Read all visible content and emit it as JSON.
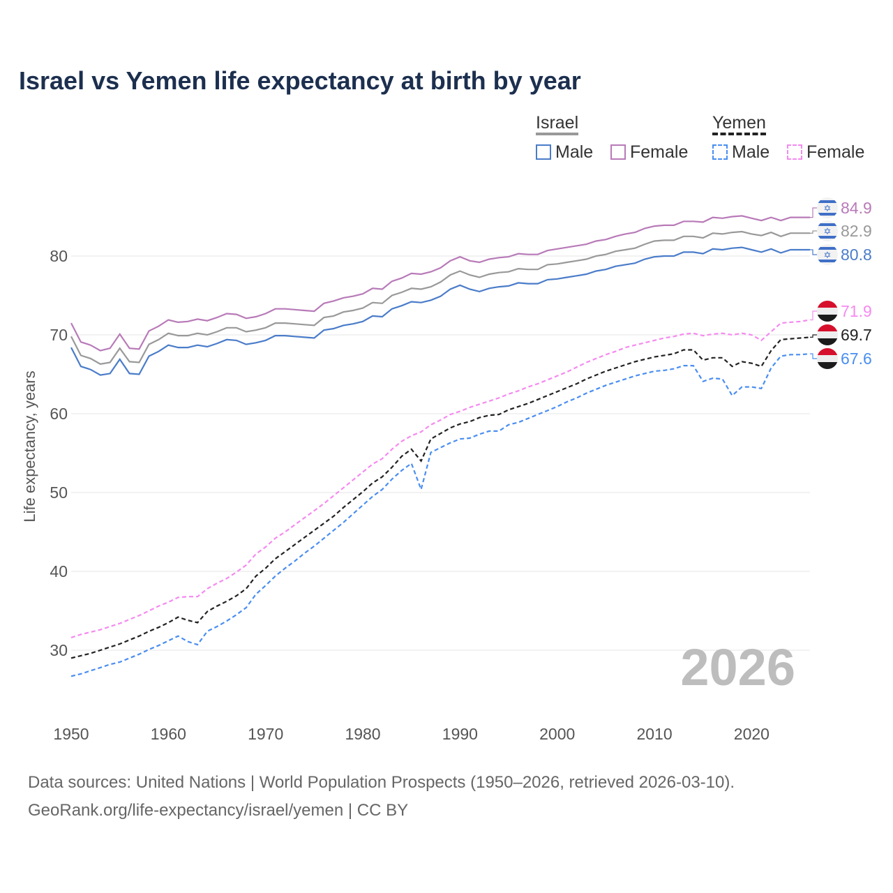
{
  "chart_data": {
    "type": "line",
    "title": "Israel vs Yemen life expectancy at birth by year",
    "xlabel": "",
    "ylabel": "Life expectancy, years",
    "xlim": [
      1950,
      2026
    ],
    "ylim": [
      22,
      87
    ],
    "x_ticks": [
      "1950",
      "1960",
      "1970",
      "1980",
      "1990",
      "2000",
      "2010",
      "2020"
    ],
    "y_ticks": [
      "30",
      "40",
      "50",
      "60",
      "70",
      "80"
    ],
    "grid": true,
    "year_watermark": "2026",
    "legend": {
      "groups": [
        {
          "label": "Israel",
          "entries": [
            "Male",
            "Female"
          ]
        },
        {
          "label": "Yemen",
          "entries": [
            "Male",
            "Female"
          ]
        }
      ],
      "placement": "top-right"
    },
    "series": [
      {
        "id": "israel-female",
        "country": "Israel",
        "sex": "Female",
        "color": "#b87ab8",
        "dashed": false,
        "end_label": "84.9",
        "offset0": 3.1,
        "offset1": 4.1
      },
      {
        "id": "israel-total",
        "country": "Israel",
        "sex": "Total",
        "color": "#999999",
        "dashed": false,
        "end_label": "82.9",
        "offset0": 1.4,
        "offset1": 2.1
      },
      {
        "id": "israel-male",
        "country": "Israel",
        "sex": "Male",
        "color": "#4a7cc9",
        "dashed": false,
        "end_label": "80.8",
        "values": [
          68.4,
          66.0,
          65.6,
          64.9,
          65.1,
          66.9,
          65.1,
          65.0,
          67.3,
          67.9,
          68.7,
          68.4,
          68.4,
          68.7,
          68.5,
          68.9,
          69.4,
          69.3,
          68.8,
          69.0,
          69.3,
          69.9,
          69.9,
          69.8,
          69.7,
          69.6,
          70.6,
          70.8,
          71.2,
          71.4,
          71.7,
          72.4,
          72.3,
          73.3,
          73.7,
          74.2,
          74.1,
          74.4,
          74.9,
          75.8,
          76.3,
          75.8,
          75.5,
          75.9,
          76.1,
          76.2,
          76.6,
          76.5,
          76.5,
          77.0,
          77.1,
          77.3,
          77.5,
          77.7,
          78.1,
          78.3,
          78.7,
          78.9,
          79.1,
          79.6,
          79.9,
          80.0,
          80.0,
          80.5,
          80.5,
          80.3,
          80.9,
          80.8,
          81.0,
          81.1,
          80.8,
          80.5,
          80.9,
          80.4,
          80.8,
          80.8,
          80.8
        ]
      },
      {
        "id": "yemen-female",
        "country": "Yemen",
        "sex": "Female",
        "color": "#f58af0",
        "dashed": true,
        "end_label": "71.9",
        "values": [
          31.6,
          32.0,
          32.3,
          32.6,
          33.0,
          33.4,
          33.9,
          34.4,
          35.0,
          35.6,
          36.1,
          36.7,
          36.8,
          36.8,
          37.8,
          38.5,
          39.1,
          39.9,
          40.8,
          42.2,
          43.1,
          44.2,
          45.0,
          45.9,
          46.8,
          47.7,
          48.6,
          49.6,
          50.6,
          51.6,
          52.6,
          53.6,
          54.3,
          55.5,
          56.5,
          57.2,
          57.7,
          58.6,
          59.2,
          59.9,
          60.3,
          60.8,
          61.2,
          61.6,
          62.0,
          62.5,
          62.9,
          63.4,
          63.8,
          64.3,
          64.8,
          65.3,
          65.9,
          66.5,
          67.0,
          67.5,
          67.9,
          68.4,
          68.7,
          69.0,
          69.3,
          69.6,
          69.8,
          70.1,
          70.2,
          69.9,
          70.1,
          70.2,
          70.0,
          70.2,
          70.0,
          69.3,
          70.4,
          71.5,
          71.6,
          71.7,
          71.9
        ]
      },
      {
        "id": "yemen-total",
        "country": "Yemen",
        "sex": "Total",
        "color": "#222222",
        "dashed": true,
        "end_label": "69.7",
        "values": [
          29.0,
          29.3,
          29.6,
          30.0,
          30.4,
          30.8,
          31.3,
          31.8,
          32.4,
          32.9,
          33.5,
          34.2,
          33.8,
          33.5,
          34.9,
          35.6,
          36.2,
          36.9,
          37.8,
          39.4,
          40.4,
          41.6,
          42.5,
          43.4,
          44.3,
          45.2,
          46.1,
          47.0,
          48.1,
          49.1,
          50.1,
          51.2,
          52.0,
          53.2,
          54.6,
          55.5,
          54.0,
          56.8,
          57.5,
          58.2,
          58.7,
          59.0,
          59.5,
          59.8,
          59.9,
          60.5,
          60.9,
          61.3,
          61.8,
          62.3,
          62.8,
          63.3,
          63.8,
          64.4,
          64.9,
          65.4,
          65.8,
          66.2,
          66.6,
          66.9,
          67.2,
          67.4,
          67.6,
          68.1,
          68.1,
          66.8,
          67.1,
          67.1,
          66.0,
          66.6,
          66.4,
          66.0,
          68.0,
          69.4,
          69.5,
          69.6,
          69.7
        ]
      },
      {
        "id": "yemen-male",
        "country": "Yemen",
        "sex": "Male",
        "color": "#4a8ef0",
        "dashed": true,
        "end_label": "67.6",
        "values": [
          26.7,
          27.0,
          27.4,
          27.8,
          28.2,
          28.5,
          29.0,
          29.5,
          30.1,
          30.6,
          31.2,
          31.8,
          31.1,
          30.7,
          32.4,
          33.0,
          33.7,
          34.5,
          35.4,
          37.1,
          38.2,
          39.4,
          40.4,
          41.3,
          42.3,
          43.2,
          44.2,
          45.2,
          46.2,
          47.3,
          48.4,
          49.5,
          50.4,
          51.7,
          52.8,
          53.7,
          50.4,
          55.1,
          55.7,
          56.3,
          56.8,
          56.9,
          57.4,
          57.8,
          57.8,
          58.6,
          58.9,
          59.4,
          59.9,
          60.4,
          60.9,
          61.5,
          62.0,
          62.6,
          63.1,
          63.6,
          64.0,
          64.4,
          64.8,
          65.1,
          65.4,
          65.5,
          65.7,
          66.1,
          66.1,
          64.1,
          64.5,
          64.4,
          62.3,
          63.4,
          63.4,
          63.2,
          65.8,
          67.3,
          67.5,
          67.5,
          67.6
        ]
      }
    ]
  },
  "footer": {
    "line1": "Data sources: United Nations | World Population Prospects (1950–2026, retrieved 2026-03-10).",
    "line2": "GeoRank.org/life-expectancy/israel/yemen | CC BY"
  }
}
